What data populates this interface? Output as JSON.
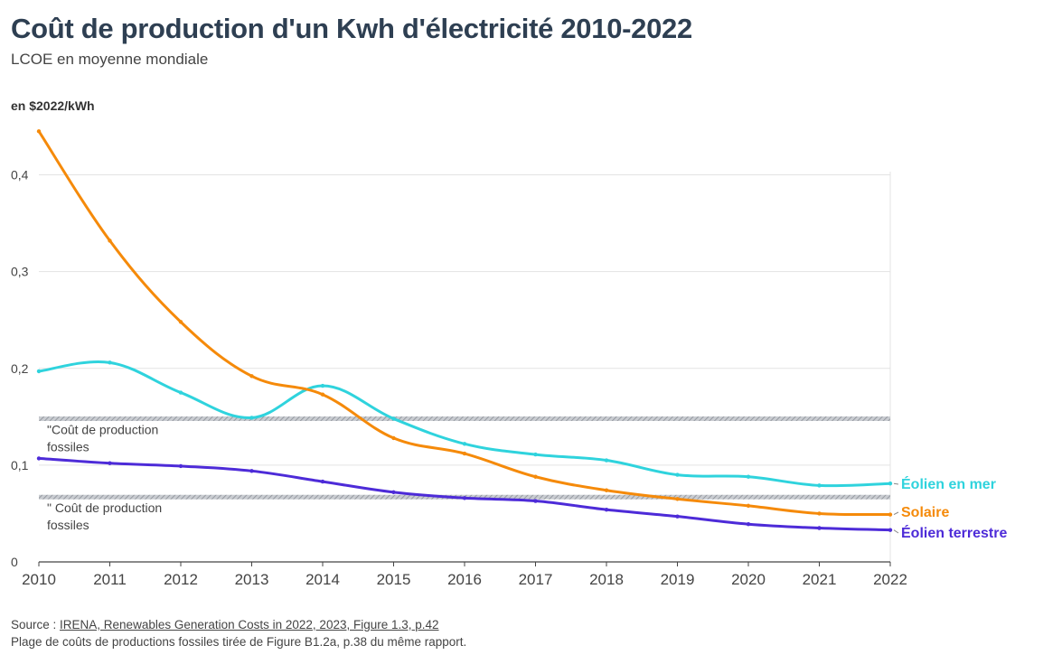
{
  "title": "Coût de production d'un Kwh d'électricité 2010-2022",
  "subtitle": "LCOE en moyenne mondiale",
  "unit_label": "en $2022/kWh",
  "footer": {
    "source_prefix": "Source : ",
    "source_link": "IRENA, Renewables Generation Costs in 2022, 2023, Figure 1.3, p.42",
    "note": "Plage de coûts de productions fossiles tirée de Figure B1.2a, p.38 du même rapport."
  },
  "chart_data": {
    "type": "line",
    "x": [
      2010,
      2011,
      2012,
      2013,
      2014,
      2015,
      2016,
      2017,
      2018,
      2019,
      2020,
      2021,
      2022
    ],
    "ylim": [
      0,
      0.45
    ],
    "y_ticks": [
      0,
      0.1,
      0.2,
      0.3,
      0.4
    ],
    "y_tick_labels": [
      "0",
      "0,1",
      "0,2",
      "0,3",
      "0,4"
    ],
    "grid": true,
    "series": [
      {
        "name": "Éolien en mer",
        "color": "#2fd3dd",
        "values": [
          0.197,
          0.206,
          0.175,
          0.149,
          0.182,
          0.148,
          0.122,
          0.111,
          0.105,
          0.09,
          0.088,
          0.079,
          0.081
        ]
      },
      {
        "name": "Solaire",
        "color": "#f58a0a",
        "values": [
          0.445,
          0.332,
          0.248,
          0.192,
          0.173,
          0.128,
          0.112,
          0.088,
          0.074,
          0.065,
          0.058,
          0.05,
          0.049
        ]
      },
      {
        "name": "Éolien terrestre",
        "color": "#4d2bd8",
        "values": [
          0.107,
          0.102,
          0.099,
          0.094,
          0.083,
          0.072,
          0.066,
          0.063,
          0.054,
          0.047,
          0.039,
          0.035,
          0.033
        ]
      }
    ],
    "reference_lines": [
      {
        "value": 0.148,
        "label_line1": "\"Coût de production",
        "label_line2": "fossiles"
      },
      {
        "value": 0.067,
        "label_line1": "\" Coût de production",
        "label_line2": "fossiles"
      }
    ]
  }
}
